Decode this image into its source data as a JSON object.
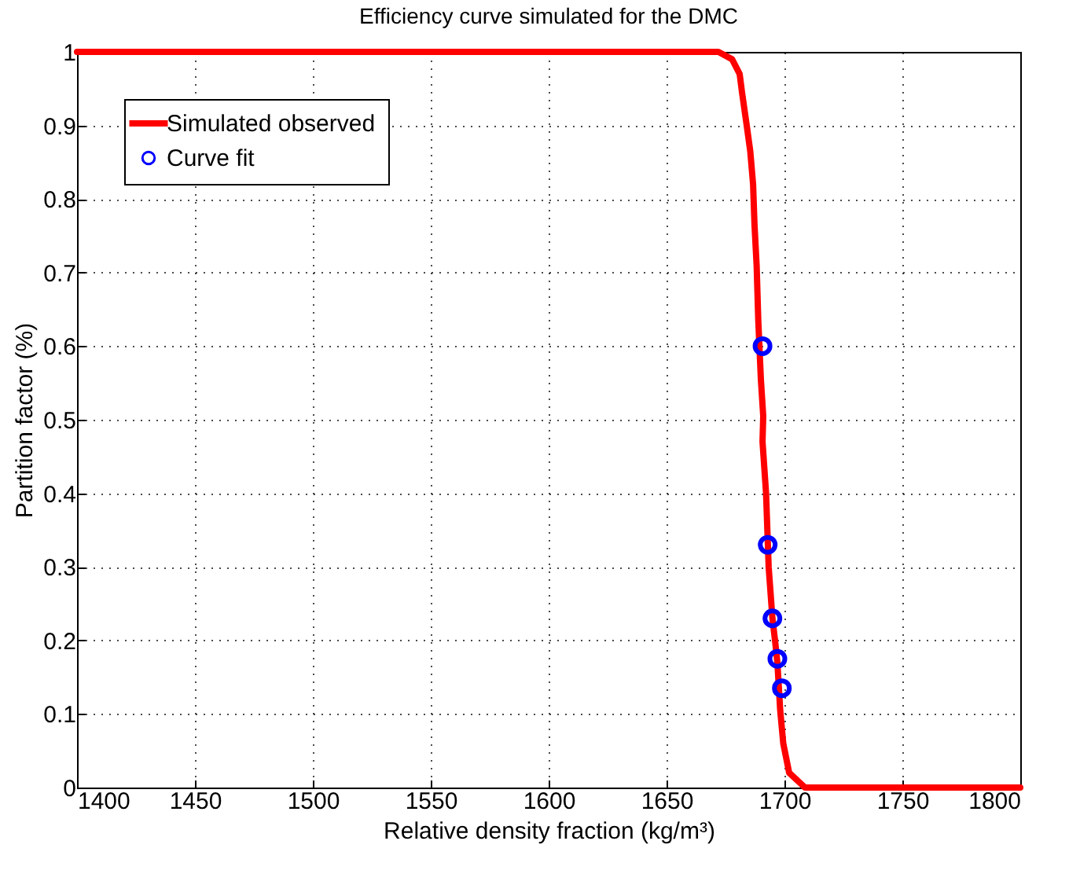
{
  "chart_data": {
    "type": "line",
    "title": "Efficiency curve simulated for the DMC",
    "xlabel": "Relative density fraction (kg/m³)",
    "ylabel": "Partition factor (%)",
    "xlim": [
      1400,
      1800
    ],
    "xticks": [
      1400,
      1450,
      1500,
      1550,
      1600,
      1650,
      1700,
      1750,
      1800
    ],
    "ylim": [
      0,
      1
    ],
    "yticks": [
      0,
      0.1,
      0.2,
      0.3,
      0.4,
      0.5,
      0.6,
      0.7,
      0.8,
      0.9,
      1
    ],
    "grid": true,
    "legend": "top left",
    "series": [
      {
        "name": "Simulated observed",
        "color": "#ff0000",
        "marker": "none",
        "x": [
          1400,
          1672,
          1677.8,
          1681,
          1682,
          1684,
          1685.5,
          1686.7,
          1687.3,
          1688.2,
          1688.9,
          1690,
          1691,
          1690.7,
          1692.2,
          1693.3,
          1694.9,
          1696,
          1697,
          1698.2,
          1699.5,
          1702,
          1708.7,
          1800
        ],
        "values": [
          1,
          1,
          0.99,
          0.97,
          0.945,
          0.9,
          0.865,
          0.82,
          0.765,
          0.71,
          0.635,
          0.555,
          0.505,
          0.47,
          0.4,
          0.3,
          0.23,
          0.2,
          0.17,
          0.105,
          0.06,
          0.02,
          0,
          0
        ]
      },
      {
        "name": "Curve fit",
        "color": "#0000ff",
        "type": "scatter",
        "marker": "circle",
        "x": [
          1690.7,
          1692.9,
          1694.9,
          1697,
          1698.9
        ],
        "values": [
          0.6,
          0.33,
          0.23,
          0.175,
          0.135
        ]
      }
    ]
  }
}
